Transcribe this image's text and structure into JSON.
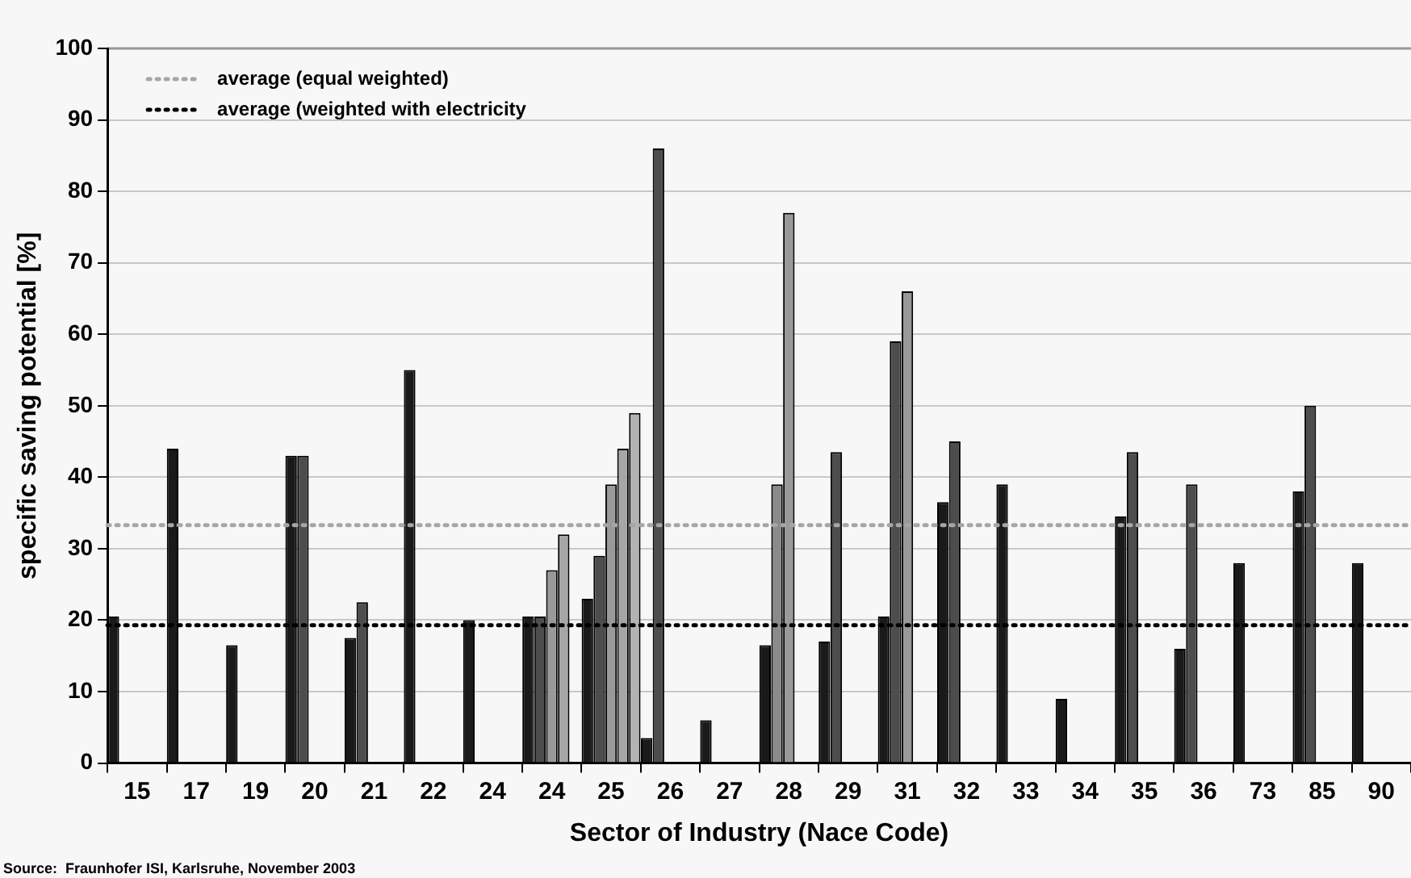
{
  "chart_data": {
    "type": "bar",
    "xlabel": "Sector of Industry (Nace Code)",
    "ylabel": "specific saving potential [%]",
    "categories": [
      "15",
      "17",
      "19",
      "20",
      "21",
      "22",
      "24",
      "24",
      "25",
      "26",
      "27",
      "28",
      "29",
      "31",
      "32",
      "33",
      "34",
      "35",
      "36",
      "73",
      "85",
      "90"
    ],
    "series": [
      {
        "color": "#1a1a1a",
        "values": [
          20.5,
          44,
          16.5,
          43,
          17.5,
          55,
          20,
          20.5,
          23,
          3.5,
          6,
          16.5,
          17,
          20.5,
          36.5,
          39,
          9,
          34.5,
          16,
          28,
          38,
          28
        ]
      },
      {
        "colors": [
          "#4d4d4d",
          "#4d4d4d",
          "#4d4d4d",
          "#4d4d4d",
          "#4d4d4d",
          "#4d4d4d",
          "#4d4d4d",
          "#4d4d4d",
          "#4d4d4d",
          "#4d4d4d",
          "#4d4d4d",
          "#8a8a8a",
          "#4d4d4d",
          "#4d4d4d",
          "#4d4d4d",
          "#4d4d4d",
          "#4d4d4d",
          "#4d4d4d",
          "#4d4d4d",
          "#4d4d4d",
          "#4d4d4d",
          "#4d4d4d"
        ],
        "values": [
          null,
          null,
          null,
          43,
          22.5,
          null,
          null,
          20.5,
          29,
          86,
          null,
          39,
          43.5,
          59,
          45,
          null,
          null,
          43.5,
          39,
          null,
          50,
          null
        ]
      },
      {
        "color": "#999999",
        "values": [
          null,
          null,
          null,
          null,
          null,
          null,
          null,
          27,
          39,
          null,
          null,
          77,
          null,
          66,
          null,
          null,
          null,
          null,
          null,
          null,
          null,
          null
        ]
      },
      {
        "color": "#a6a6a6",
        "values": [
          null,
          null,
          null,
          null,
          null,
          null,
          null,
          32,
          44,
          null,
          null,
          null,
          null,
          null,
          null,
          null,
          null,
          null,
          null,
          null,
          null,
          null
        ]
      },
      {
        "color": "#b3b3b3",
        "values": [
          null,
          null,
          null,
          null,
          null,
          null,
          null,
          null,
          49,
          null,
          null,
          null,
          null,
          null,
          null,
          null,
          null,
          null,
          null,
          null,
          null,
          null
        ]
      }
    ],
    "ylim": [
      0,
      100
    ],
    "yticks": [
      0,
      10,
      20,
      30,
      40,
      50,
      60,
      70,
      80,
      90,
      100
    ],
    "grid": "y",
    "legend": "top left",
    "ref_lines": [
      {
        "axis": "y",
        "value": 33.3,
        "label": "average (equal weighted)",
        "color": "#a6a6a6",
        "line_style": "dotted"
      },
      {
        "axis": "y",
        "value": 19.3,
        "label": "average (weighted with electricity",
        "color": "#000000",
        "line_style": "dotted"
      }
    ],
    "annotations": [
      "Source:  Fraunhofer ISI, Karlsruhe, November 2003"
    ]
  }
}
